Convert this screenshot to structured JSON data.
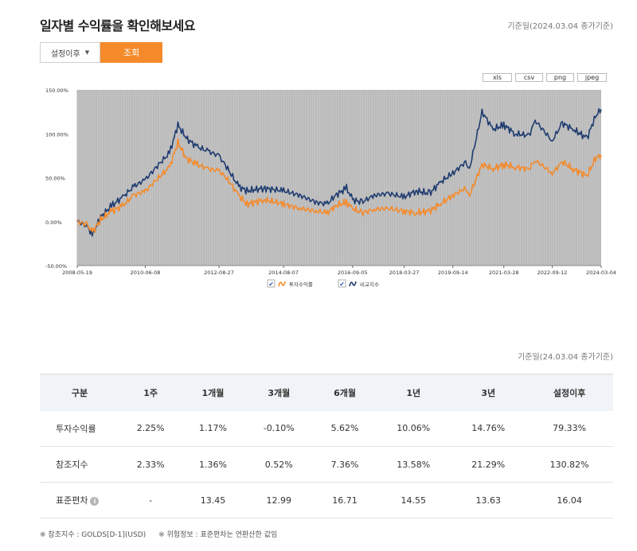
{
  "header": {
    "title": "일자별 수익률을 확인해보세요",
    "base_date": "기준일(2024.03.04 종가기준)"
  },
  "controls": {
    "period_select": "설정이후",
    "search_button": "조회"
  },
  "export_buttons": [
    "xls",
    "csv",
    "png",
    "jpeg"
  ],
  "chart_data": {
    "type": "line",
    "yticks": [
      "150.00%",
      "100.00%",
      "50.00%",
      "0.00%",
      "-50.00%"
    ],
    "ylim": [
      -50,
      150
    ],
    "xticks": [
      "2008-05-19",
      "2010-06-08",
      "2012-08-27",
      "2014-08-07",
      "2016-09-05",
      "2018-03-27",
      "2019-09-14",
      "2021-03-28",
      "2022-09-12",
      "2024-03-04"
    ],
    "x": [
      "2008-05-19",
      "2008-09-01",
      "2008-11-01",
      "2009-02-01",
      "2009-06-01",
      "2009-10-01",
      "2010-02-01",
      "2010-06-08",
      "2010-11-01",
      "2011-03-01",
      "2011-06-01",
      "2011-09-01",
      "2012-01-01",
      "2012-05-01",
      "2012-08-27",
      "2012-12-01",
      "2013-04-01",
      "2013-07-01",
      "2014-01-01",
      "2014-08-07",
      "2015-02-01",
      "2015-08-01",
      "2015-12-01",
      "2016-03-01",
      "2016-07-01",
      "2016-09-05",
      "2016-12-15",
      "2017-05-01",
      "2017-10-01",
      "2018-03-27",
      "2018-08-01",
      "2019-01-01",
      "2019-05-01",
      "2019-09-14",
      "2020-02-01",
      "2020-03-15",
      "2020-08-01",
      "2020-12-01",
      "2021-03-28",
      "2021-08-01",
      "2022-01-01",
      "2022-03-08",
      "2022-09-12",
      "2023-01-01",
      "2023-05-01",
      "2023-10-01",
      "2024-01-01",
      "2024-03-04"
    ],
    "series": [
      {
        "name": "투자수익률",
        "color": "#f58a2a",
        "values": [
          0,
          -3,
          -12,
          2,
          12,
          18,
          30,
          35,
          50,
          62,
          90,
          72,
          65,
          60,
          58,
          48,
          30,
          20,
          25,
          20,
          15,
          12,
          10,
          18,
          22,
          15,
          10,
          14,
          15,
          12,
          10,
          12,
          20,
          30,
          38,
          30,
          65,
          60,
          65,
          62,
          60,
          70,
          55,
          68,
          60,
          52,
          72,
          76
        ]
      },
      {
        "name": "비교지수",
        "color": "#1f3c70",
        "values": [
          0,
          -5,
          -15,
          5,
          18,
          28,
          40,
          48,
          65,
          78,
          110,
          95,
          85,
          80,
          75,
          60,
          40,
          35,
          38,
          35,
          30,
          22,
          20,
          30,
          38,
          25,
          22,
          30,
          32,
          28,
          35,
          32,
          45,
          55,
          68,
          60,
          125,
          105,
          110,
          100,
          98,
          115,
          92,
          112,
          105,
          95,
          120,
          128
        ]
      }
    ],
    "legend": "bottom-center",
    "grid": true
  },
  "table": {
    "base_date": "기준일(24.03.04 종가기준)",
    "headers": [
      "구분",
      "1주",
      "1개월",
      "3개월",
      "6개월",
      "1년",
      "3년",
      "설정이후"
    ],
    "rows": [
      {
        "label": "투자수익률",
        "cells": [
          "2.25%",
          "1.17%",
          "-0.10%",
          "5.62%",
          "10.06%",
          "14.76%",
          "79.33%"
        ]
      },
      {
        "label": "참조지수",
        "cells": [
          "2.33%",
          "1.36%",
          "0.52%",
          "7.36%",
          "13.58%",
          "21.29%",
          "130.82%"
        ]
      },
      {
        "label": "표준편차",
        "info_icon": "info-icon",
        "cells": [
          "-",
          "13.45",
          "12.99",
          "16.71",
          "14.55",
          "13.63",
          "16.04"
        ]
      }
    ]
  },
  "footnotes": {
    "reference": "※ 참조지수 : GOLDS[D-1](USD)",
    "risk": "※ 위험정보 : 표준편차는 연환산한 값임"
  }
}
